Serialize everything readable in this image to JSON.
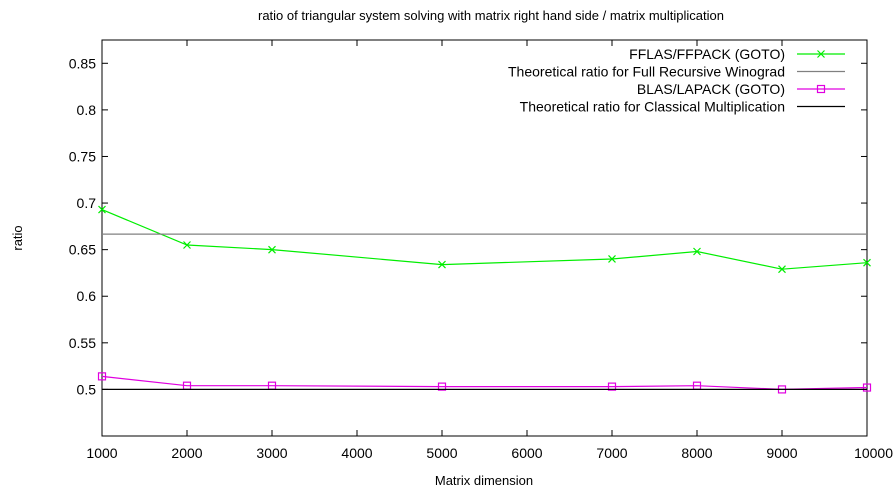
{
  "chart_data": {
    "type": "line",
    "title": "ratio of triangular system solving with matrix right hand side / matrix multiplication",
    "xlabel": "Matrix dimension",
    "ylabel": "ratio",
    "xlim": [
      1000,
      10000
    ],
    "ylim": [
      0.45,
      0.875
    ],
    "xticks": [
      "1000",
      "2000",
      "3000",
      "4000",
      "5000",
      "6000",
      "7000",
      "8000",
      "9000",
      "10000"
    ],
    "yticks": [
      "0.5",
      "0.55",
      "0.6",
      "0.65",
      "0.7",
      "0.75",
      "0.8",
      "0.85"
    ],
    "legend_position": "top-right",
    "grid": false,
    "series": [
      {
        "name": "FFLAS/FFPACK (GOTO)",
        "color": "#00ee00",
        "marker": "x",
        "x": [
          1000,
          2000,
          3000,
          5000,
          7000,
          8000,
          9000,
          10000
        ],
        "y": [
          0.693,
          0.655,
          0.65,
          0.634,
          0.64,
          0.648,
          0.629,
          0.636
        ]
      },
      {
        "name": "Theoretical ratio for Full Recursive Winograd",
        "color": "#808080",
        "marker": "none",
        "x": [
          1000,
          10000
        ],
        "y": [
          0.6667,
          0.6667
        ]
      },
      {
        "name": "BLAS/LAPACK  (GOTO)",
        "color": "#e000e0",
        "marker": "square",
        "x": [
          1000,
          2000,
          3000,
          5000,
          7000,
          8000,
          9000,
          10000
        ],
        "y": [
          0.514,
          0.504,
          0.504,
          0.503,
          0.503,
          0.504,
          0.5,
          0.502
        ]
      },
      {
        "name": "Theoretical ratio for Classical Multiplication",
        "color": "#000000",
        "marker": "none",
        "x": [
          1000,
          10000
        ],
        "y": [
          0.5,
          0.5
        ]
      }
    ]
  }
}
